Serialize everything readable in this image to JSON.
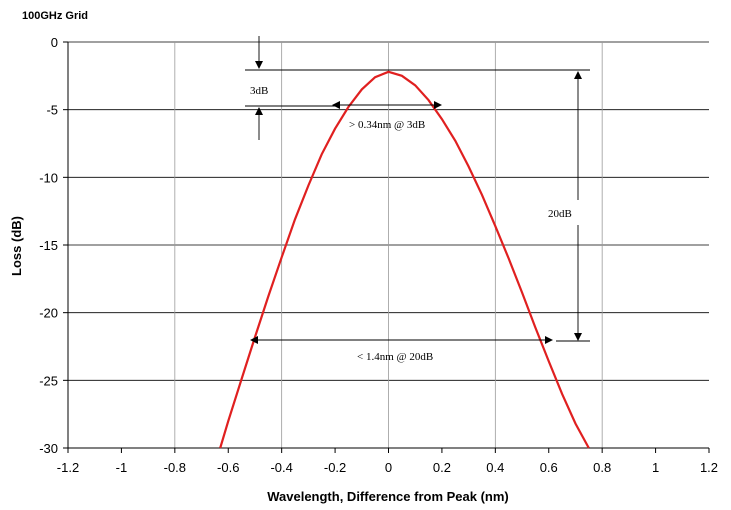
{
  "chart_data": {
    "type": "line",
    "title": "100GHz  Grid",
    "xlabel": "Wavelength, Difference from Peak (nm)",
    "ylabel": "Loss (dB)",
    "xlim": [
      -1.2,
      1.2
    ],
    "ylim": [
      -30,
      0
    ],
    "xticks": [
      -1.2,
      -1.0,
      -0.8,
      -0.6,
      -0.4,
      -0.2,
      0,
      0.2,
      0.4,
      0.6,
      0.8,
      1.0,
      1.2
    ],
    "xtick_labels": [
      "-1.2",
      "-1",
      "-0.8",
      "-0.6",
      "-0.4",
      "-0.2",
      "0",
      "0.2",
      "0.4",
      "0.6",
      "0.8",
      "1",
      "1.2"
    ],
    "yticks": [
      0,
      -5,
      -10,
      -15,
      -20,
      -25,
      -30
    ],
    "ytick_labels": [
      "0",
      "-5",
      "-10",
      "-15",
      "-20",
      "-25",
      "-30"
    ],
    "grid": true,
    "series": [
      {
        "color": "#e02020",
        "x": [
          -0.63,
          -0.6,
          -0.55,
          -0.5,
          -0.45,
          -0.4,
          -0.35,
          -0.3,
          -0.25,
          -0.2,
          -0.15,
          -0.1,
          -0.05,
          0,
          0.05,
          0.1,
          0.15,
          0.2,
          0.25,
          0.3,
          0.35,
          0.4,
          0.45,
          0.5,
          0.55,
          0.6,
          0.65,
          0.7,
          0.75
        ],
        "y": [
          -30.0,
          -28.0,
          -24.9,
          -21.8,
          -18.8,
          -15.9,
          -13.1,
          -10.6,
          -8.3,
          -6.4,
          -4.8,
          -3.5,
          -2.6,
          -2.2,
          -2.5,
          -3.2,
          -4.3,
          -5.7,
          -7.3,
          -9.2,
          -11.3,
          -13.6,
          -16.0,
          -18.5,
          -21.1,
          -23.6,
          -26.0,
          -28.2,
          -30.0
        ]
      }
    ],
    "annotations": [
      {
        "text": "3dB"
      },
      {
        "text": "> 0.34nm @ 3dB"
      },
      {
        "text": "20dB"
      },
      {
        "text": "< 1.4nm @ 20dB"
      }
    ]
  }
}
